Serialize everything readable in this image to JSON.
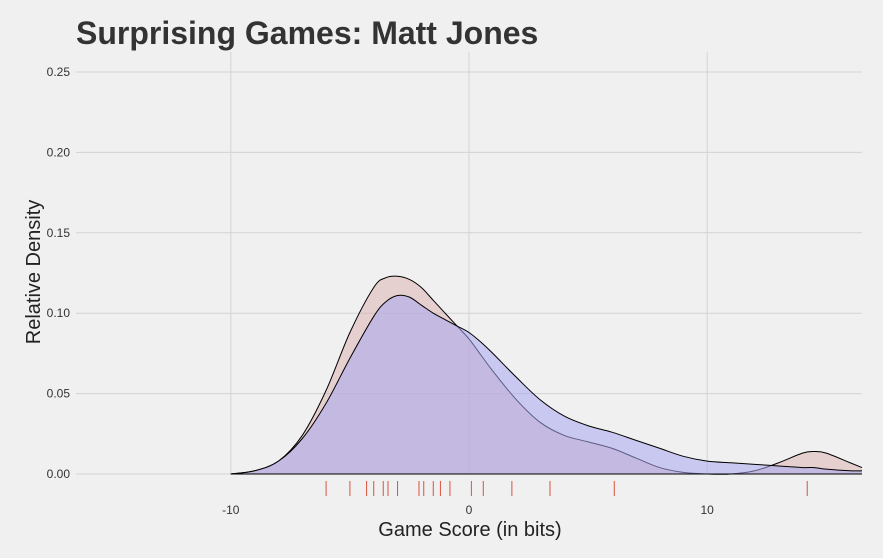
{
  "chart_data": {
    "type": "area",
    "title": "Surprising Games: Matt Jones",
    "xlabel": "Game Score (in bits)",
    "ylabel": "Relative Density",
    "xlim": [
      -16.5,
      16.5
    ],
    "ylim": [
      0,
      0.25
    ],
    "x_ticks": [
      -10,
      0,
      10
    ],
    "x_tick_labels": [
      "-10",
      "0",
      "10"
    ],
    "y_ticks": [
      0.0,
      0.05,
      0.1,
      0.15,
      0.2,
      0.25
    ],
    "y_tick_labels": [
      "0.00",
      "0.05",
      "0.10",
      "0.15",
      "0.20",
      "0.25"
    ],
    "grid": true,
    "legend": "none",
    "series": [
      {
        "color": "#d9a6a6",
        "x": [
          -10,
          -9,
          -8,
          -7,
          -6,
          -5,
          -4,
          -3.5,
          -3,
          -2.5,
          -2,
          -1.5,
          -1,
          -0.5,
          0,
          0.5,
          1,
          2,
          3,
          4,
          5,
          6,
          7,
          8,
          9,
          10,
          11,
          12,
          13,
          14,
          14.5,
          15,
          16,
          16.5
        ],
        "values": [
          0.0,
          0.002,
          0.008,
          0.024,
          0.052,
          0.088,
          0.116,
          0.122,
          0.123,
          0.121,
          0.116,
          0.108,
          0.1,
          0.092,
          0.084,
          0.074,
          0.064,
          0.046,
          0.032,
          0.024,
          0.02,
          0.016,
          0.01,
          0.004,
          0.001,
          0.0,
          0.0,
          0.002,
          0.007,
          0.013,
          0.014,
          0.013,
          0.007,
          0.004
        ]
      },
      {
        "color": "#a8a8f0",
        "x": [
          -10,
          -9,
          -8,
          -7,
          -6,
          -5,
          -4,
          -3.5,
          -3,
          -2.5,
          -2,
          -1.5,
          -1,
          -0.5,
          0,
          0.5,
          1,
          2,
          3,
          4,
          5,
          6,
          7,
          8,
          9,
          10,
          11,
          12,
          13,
          14,
          14.5,
          15,
          16,
          16.5
        ],
        "values": [
          0.0,
          0.002,
          0.008,
          0.022,
          0.044,
          0.072,
          0.098,
          0.107,
          0.111,
          0.11,
          0.105,
          0.1,
          0.096,
          0.092,
          0.088,
          0.082,
          0.075,
          0.06,
          0.046,
          0.036,
          0.03,
          0.026,
          0.021,
          0.016,
          0.011,
          0.008,
          0.007,
          0.006,
          0.005,
          0.004,
          0.004,
          0.003,
          0.002,
          0.002
        ]
      }
    ],
    "rug": {
      "color": "#d9533f",
      "x": [
        -6,
        -5,
        -4.3,
        -4,
        -3.6,
        -3.4,
        -3.0,
        -2.1,
        -1.9,
        -1.5,
        -1.2,
        -0.8,
        0.1,
        0.6,
        1.8,
        3.4,
        6.1,
        14.2
      ]
    }
  }
}
